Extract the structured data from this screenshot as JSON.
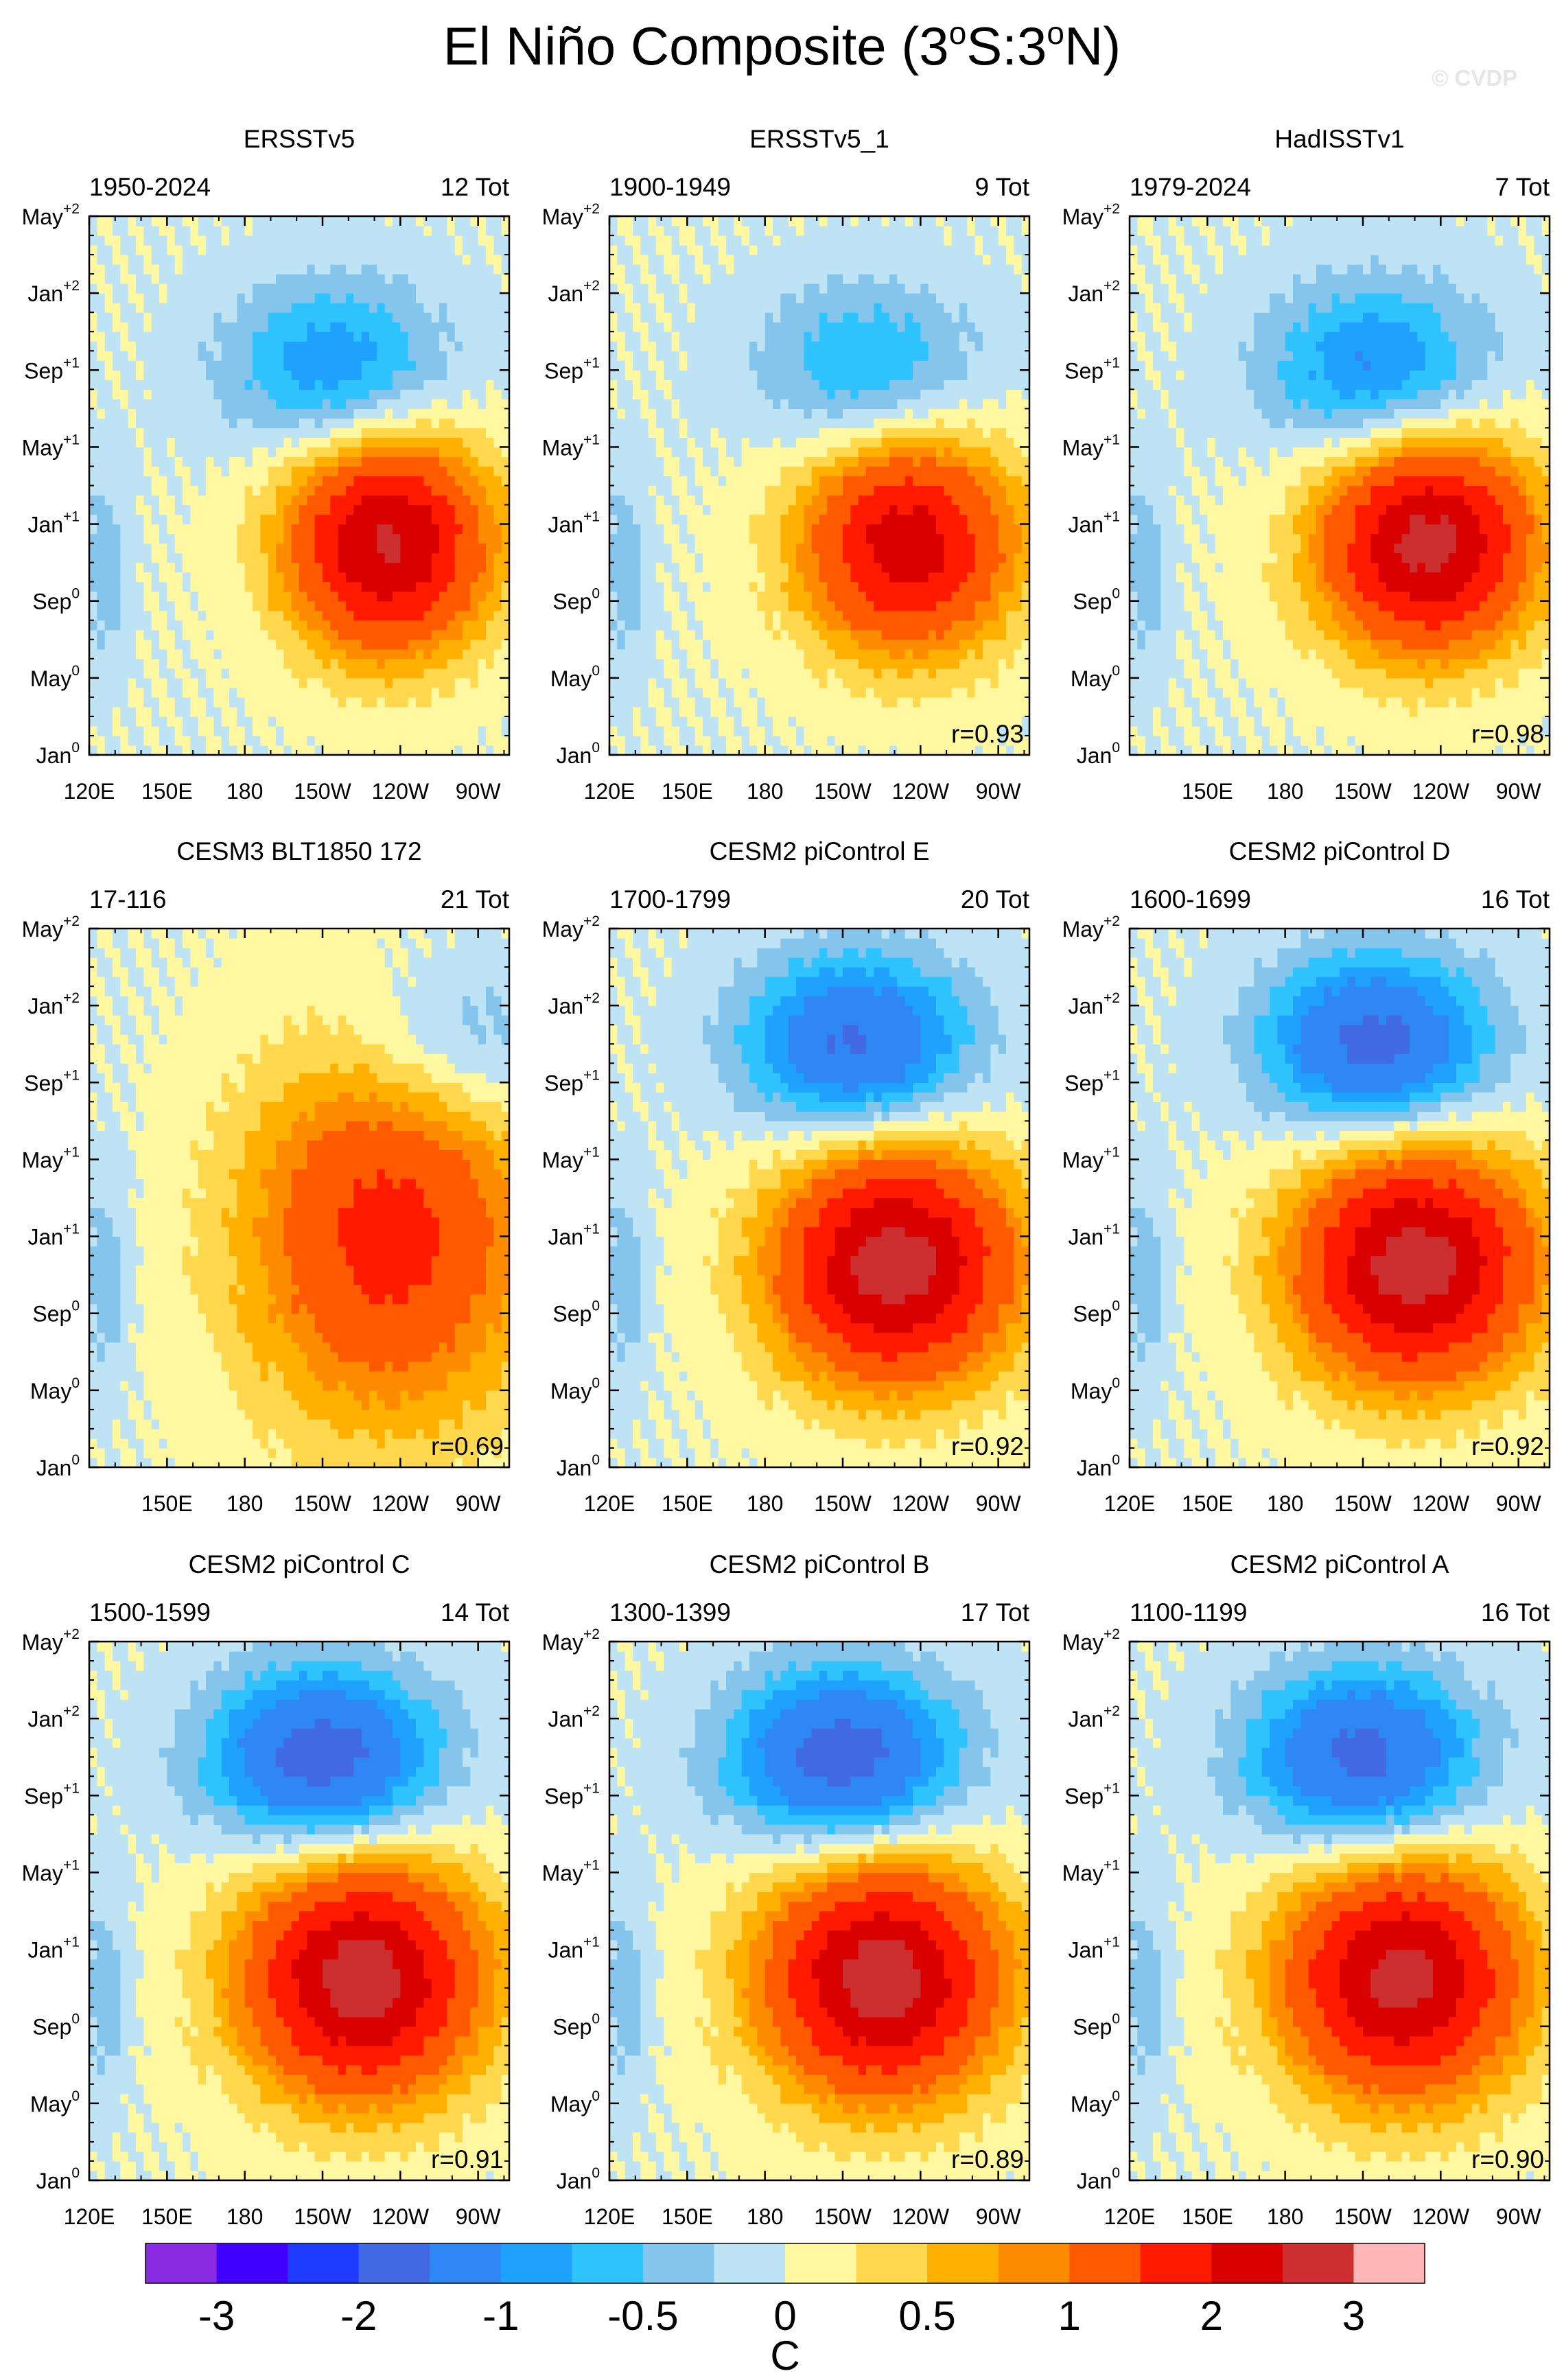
{
  "title": "El Niño Composite (3oS:3oN)",
  "title_parts": {
    "pre": "El Niño Composite (3",
    "sup1": "o",
    "mid": "S:3",
    "sup2": "o",
    "post": "N)"
  },
  "credit": "© CVDP",
  "colorbar": {
    "colors": [
      "#8a2be2",
      "#3f00ff",
      "#1e3cff",
      "#4169e1",
      "#2f86f5",
      "#1ea1ff",
      "#2fc4ff",
      "#86c5eb",
      "#bde3f5",
      "#fff8a0",
      "#ffd84d",
      "#ffb000",
      "#ff8c00",
      "#ff5a00",
      "#ff1a00",
      "#d90000",
      "#cc2f2f",
      "#ffb6b6"
    ],
    "labels": [
      "-3",
      "-2",
      "-1",
      "-0.5",
      "0",
      "0.5",
      "1",
      "2",
      "3"
    ],
    "units": "C"
  },
  "y_ticks": [
    "Jan0",
    "May0",
    "Sep0",
    "Jan+1",
    "May+1",
    "Sep+1",
    "Jan+2",
    "May+2"
  ],
  "chart_data": [
    {
      "type": "heatmap",
      "title": "ERSSTv5",
      "years": "1950-2024",
      "count": "12 Tot",
      "r": "",
      "x_ticks": [
        "120E",
        "150E",
        "180",
        "150W",
        "120W",
        "90W"
      ],
      "x_range": [
        120,
        282
      ],
      "y_range": [
        0,
        28
      ],
      "anomaly": {
        "peak": 2.6,
        "peak_lon": 235,
        "peak_month": 11,
        "spread": 38,
        "start_month": 7,
        "end_month": 15,
        "neg": -1.0,
        "neg_lon": 215,
        "neg_month": 20
      }
    },
    {
      "type": "heatmap",
      "title": "ERSSTv5_1",
      "years": "1900-1949",
      "count": "9 Tot",
      "r": "r=0.93",
      "x_ticks": [
        "120E",
        "150E",
        "180",
        "150W",
        "120W",
        "90W"
      ],
      "x_range": [
        120,
        282
      ],
      "y_range": [
        0,
        28
      ],
      "anomaly": {
        "peak": 2.3,
        "peak_lon": 235,
        "peak_month": 11,
        "spread": 40,
        "start_month": 7,
        "end_month": 15,
        "neg": -0.8,
        "neg_lon": 220,
        "neg_month": 20
      }
    },
    {
      "type": "heatmap",
      "title": "HadISSTv1",
      "years": "1979-2024",
      "count": "7 Tot",
      "r": "r=0.98",
      "x_ticks": [
        "150E",
        "180",
        "150W",
        "120W",
        "90W"
      ],
      "x_range": [
        120,
        282
      ],
      "y_range": [
        0,
        28
      ],
      "anomaly": {
        "peak": 2.7,
        "peak_lon": 235,
        "peak_month": 11,
        "spread": 40,
        "start_month": 7,
        "end_month": 15,
        "neg": -1.1,
        "neg_lon": 215,
        "neg_month": 20
      }
    },
    {
      "type": "heatmap",
      "title": "CESM3 BLT1850 172",
      "years": "17-116",
      "count": "21 Tot",
      "r": "r=0.69",
      "x_ticks": [
        "150E",
        "180",
        "150W",
        "120W",
        "90W"
      ],
      "x_range": [
        120,
        282
      ],
      "y_range": [
        0,
        28
      ],
      "anomaly": {
        "peak": 1.7,
        "peak_lon": 235,
        "peak_month": 11,
        "spread": 55,
        "start_month": 4,
        "end_month": 20,
        "neg": -0.6,
        "neg_lon": 265,
        "neg_month": 22
      }
    },
    {
      "type": "heatmap",
      "title": "CESM2 piControl E",
      "years": "1700-1799",
      "count": "20 Tot",
      "r": "r=0.92",
      "x_ticks": [
        "120E",
        "150E",
        "180",
        "150W",
        "120W",
        "90W"
      ],
      "x_range": [
        120,
        282
      ],
      "y_range": [
        0,
        28
      ],
      "anomaly": {
        "peak": 2.8,
        "peak_lon": 230,
        "peak_month": 11,
        "spread": 45,
        "start_month": 6,
        "end_month": 15,
        "neg": -1.6,
        "neg_lon": 215,
        "neg_month": 22
      }
    },
    {
      "type": "heatmap",
      "title": "CESM2 piControl D",
      "years": "1600-1699",
      "count": "16 Tot",
      "r": "r=0.92",
      "x_ticks": [
        "120E",
        "150E",
        "180",
        "150W",
        "120W",
        "90W"
      ],
      "x_range": [
        120,
        282
      ],
      "y_range": [
        0,
        28
      ],
      "anomaly": {
        "peak": 2.8,
        "peak_lon": 230,
        "peak_month": 11,
        "spread": 45,
        "start_month": 6,
        "end_month": 15,
        "neg": -1.7,
        "neg_lon": 215,
        "neg_month": 22
      }
    },
    {
      "type": "heatmap",
      "title": "CESM2 piControl C",
      "years": "1500-1599",
      "count": "14 Tot",
      "r": "r=0.91",
      "x_ticks": [
        "120E",
        "150E",
        "180",
        "150W",
        "120W",
        "90W"
      ],
      "x_range": [
        120,
        282
      ],
      "y_range": [
        0,
        28
      ],
      "anomaly": {
        "peak": 2.8,
        "peak_lon": 225,
        "peak_month": 11,
        "spread": 45,
        "start_month": 6,
        "end_month": 15,
        "neg": -1.8,
        "neg_lon": 210,
        "neg_month": 22
      }
    },
    {
      "type": "heatmap",
      "title": "CESM2 piControl B",
      "years": "1300-1399",
      "count": "17 Tot",
      "r": "r=0.89",
      "x_ticks": [
        "120E",
        "150E",
        "180",
        "150W",
        "120W",
        "90W"
      ],
      "x_range": [
        120,
        282
      ],
      "y_range": [
        0,
        28
      ],
      "anomaly": {
        "peak": 2.8,
        "peak_lon": 225,
        "peak_month": 11,
        "spread": 45,
        "start_month": 6,
        "end_month": 15,
        "neg": -1.8,
        "neg_lon": 210,
        "neg_month": 22
      }
    },
    {
      "type": "heatmap",
      "title": "CESM2 piControl A",
      "years": "1100-1199",
      "count": "16 Tot",
      "r": "r=0.90",
      "x_ticks": [
        "120E",
        "150E",
        "180",
        "150W",
        "120W",
        "90W"
      ],
      "x_range": [
        120,
        282
      ],
      "y_range": [
        0,
        28
      ],
      "anomaly": {
        "peak": 2.7,
        "peak_lon": 225,
        "peak_month": 11,
        "spread": 45,
        "start_month": 6,
        "end_month": 15,
        "neg": -1.7,
        "neg_lon": 210,
        "neg_month": 22
      }
    }
  ]
}
